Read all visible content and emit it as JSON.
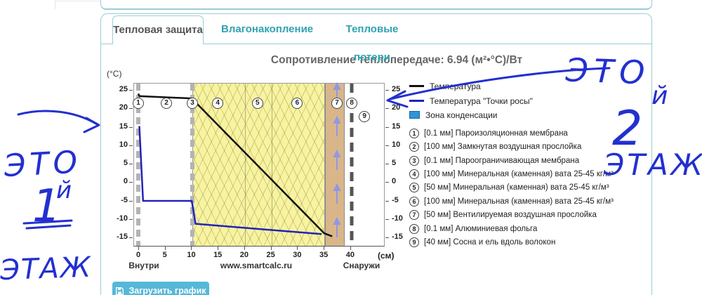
{
  "tabs": {
    "active": "Тепловая защита",
    "inactive": [
      "Влагонакопление",
      "Тепловые потери"
    ]
  },
  "title": "Сопротивление теплопередаче: 6.94 (м²•°С)/Вт",
  "chart": {
    "type": "line",
    "unit_y": "(°C)",
    "unit_x": "(см)",
    "y_ticks": [
      25,
      20,
      15,
      10,
      5,
      0,
      -5,
      -10,
      -15
    ],
    "x_ticks": [
      0,
      5,
      10,
      15,
      20,
      25,
      30,
      35,
      40
    ],
    "inside_label": "Внутри",
    "watermark": "www.smartcalc.ru",
    "outside_label": "Снаружи",
    "series": [
      {
        "name": "Температура",
        "color": "#111111",
        "points": [
          [
            0,
            24
          ],
          [
            0.2,
            23.3
          ],
          [
            10.1,
            22.7
          ],
          [
            35.1,
            -13.9
          ],
          [
            36.6,
            -14.7
          ]
        ]
      },
      {
        "name": "Температура \"Точки росы\"",
        "color": "#2222bb",
        "points": [
          [
            0.2,
            15.2
          ],
          [
            0.9,
            -5.1
          ],
          [
            10.1,
            -5.1
          ],
          [
            10.8,
            -11.3
          ],
          [
            34.6,
            -14.1
          ]
        ]
      }
    ],
    "markers": [
      {
        "n": "1",
        "cm": 0.0,
        "row": "top"
      },
      {
        "n": "2",
        "cm": 5.3,
        "row": "top"
      },
      {
        "n": "3",
        "cm": 10.2,
        "row": "top"
      },
      {
        "n": "4",
        "cm": 15.0,
        "row": "top"
      },
      {
        "n": "5",
        "cm": 22.5,
        "row": "top"
      },
      {
        "n": "6",
        "cm": 30.0,
        "row": "top"
      },
      {
        "n": "7",
        "cm": 37.5,
        "row": "top"
      },
      {
        "n": "8",
        "cm": 40.3,
        "row": "top"
      },
      {
        "n": "9",
        "cm": 42.7,
        "row": "low"
      }
    ]
  },
  "legend": {
    "temperature": "Температура",
    "dew_point": "Температура \"Точки росы\"",
    "condensation_zone": "Зона конденсации",
    "zone_color": "#2e96d6",
    "layers": [
      {
        "n": "1",
        "label": "[0.1 мм] Пароизоляционная мембрана"
      },
      {
        "n": "2",
        "label": "[100 мм] Замкнутая воздушная прослойка"
      },
      {
        "n": "3",
        "label": "[0.1 мм] Пароограничивающая мембрана"
      },
      {
        "n": "4",
        "label": "[100 мм] Минеральная (каменная) вата 25-45 кг/м³"
      },
      {
        "n": "5",
        "label": "[50 мм] Минеральная (каменная) вата 25-45 кг/м³"
      },
      {
        "n": "6",
        "label": "[100 мм] Минеральная (каменная) вата 25-45 кг/м³"
      },
      {
        "n": "7",
        "label": "[50 мм] Вентилируемая воздушная прослойка"
      },
      {
        "n": "8",
        "label": "[0.1 мм] Алюминиевая фольга"
      },
      {
        "n": "9",
        "label": "[40 мм] Сосна и ель вдоль волокон"
      }
    ]
  },
  "annotations": {
    "left": {
      "word1": "ЭТО",
      "number": "1",
      "suffix": "й",
      "word2": "ЭТАЖ"
    },
    "right": {
      "word1": "ЭТО",
      "number": "2",
      "suffix": "й",
      "word2": "ЭТАЖ"
    }
  },
  "button": {
    "label": "Загрузить график"
  }
}
